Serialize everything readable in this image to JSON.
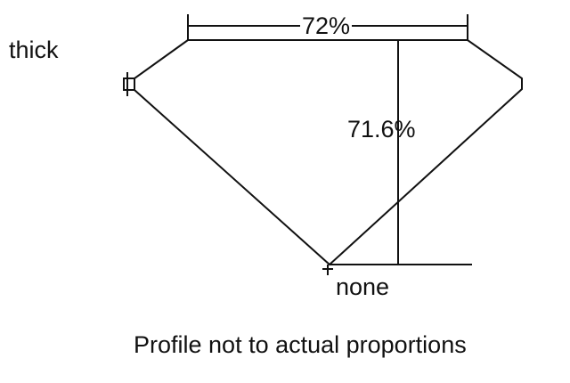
{
  "labels": {
    "girdle": "thick",
    "table": "72%",
    "depth": "71.6%",
    "culet": "none",
    "caption": "Profile not to actual proportions"
  },
  "colors": {
    "line": "#111111",
    "background": "#ffffff"
  }
}
